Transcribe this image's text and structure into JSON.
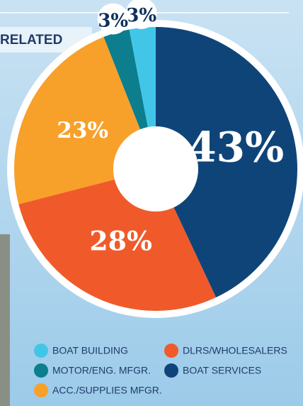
{
  "chart_data": {
    "type": "pie",
    "title": "RELATED",
    "categories": [
      "BOAT BUILDING",
      "MOTOR/ENG. MFGR.",
      "ACC./SUPPLIES MFGR.",
      "DLRS/WHOLESALERS",
      "BOAT SERVICES"
    ],
    "values": [
      3,
      3,
      23,
      28,
      43
    ],
    "value_labels": [
      "3%",
      "3%",
      "23%",
      "28%",
      "43%"
    ],
    "colors": [
      "#42c6e8",
      "#0c7e8e",
      "#f7a12a",
      "#f05a2a",
      "#0f4478"
    ]
  }
}
